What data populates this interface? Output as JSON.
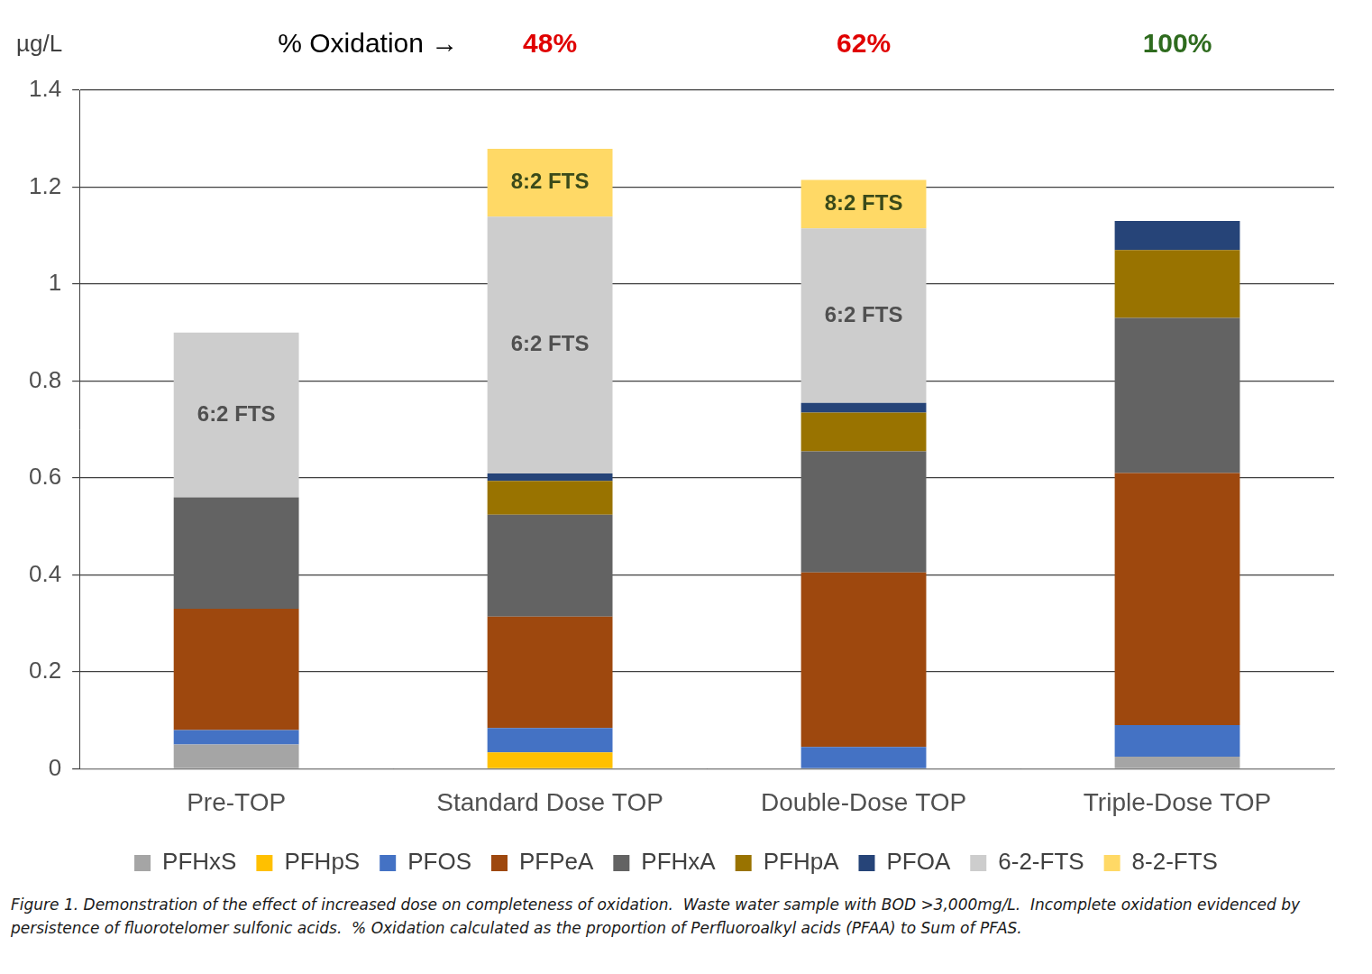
{
  "chart_data": {
    "type": "bar",
    "stacked": true,
    "ylabel": "µg/L",
    "categories": [
      "Pre-TOP",
      "Standard Dose TOP",
      "Double-Dose TOP",
      "Triple-Dose TOP"
    ],
    "series": [
      {
        "name": "PFHxS",
        "color": "#a5a5a5",
        "values": [
          0.05,
          0,
          0,
          0.025
        ]
      },
      {
        "name": "PFHpS",
        "color": "#ffc000",
        "values": [
          0,
          0.034,
          0,
          0
        ]
      },
      {
        "name": "PFOS",
        "color": "#4472c4",
        "values": [
          0.03,
          0.05,
          0.045,
          0.065
        ]
      },
      {
        "name": "PFPeA",
        "color": "#9e480e",
        "values": [
          0.25,
          0.23,
          0.36,
          0.52
        ]
      },
      {
        "name": "PFHxA",
        "color": "#636363",
        "values": [
          0.23,
          0.21,
          0.25,
          0.32
        ]
      },
      {
        "name": "PFHpA",
        "color": "#997300",
        "values": [
          0,
          0.07,
          0.08,
          0.14
        ]
      },
      {
        "name": "PFOA",
        "color": "#264478",
        "values": [
          0,
          0.015,
          0.02,
          0.06
        ]
      },
      {
        "name": "6-2-FTS",
        "color": "#cdcdcd",
        "values": [
          0.34,
          0.53,
          0.36,
          0
        ]
      },
      {
        "name": "8-2-FTS",
        "color": "#ffd966",
        "values": [
          0,
          0.14,
          0.1,
          0
        ]
      }
    ],
    "ylim": [
      0,
      1.4
    ],
    "yticks": [
      0,
      0.2,
      0.4,
      0.6,
      0.8,
      1,
      1.2,
      1.4
    ],
    "grid": true,
    "legend": "bottom",
    "annotations": [
      {
        "text": "% Oxidation →",
        "color": "#000000"
      },
      {
        "text": "48%",
        "category": "Standard Dose TOP",
        "color": "#e00000"
      },
      {
        "text": "62%",
        "category": "Double-Dose TOP",
        "color": "#e00000"
      },
      {
        "text": "100%",
        "category": "Triple-Dose TOP",
        "color": "#2e6b1e"
      },
      {
        "text": "6:2 FTS",
        "category": "Pre-TOP",
        "series": "6-2-FTS",
        "color": "#505050"
      },
      {
        "text": "6:2 FTS",
        "category": "Standard Dose TOP",
        "series": "6-2-FTS",
        "color": "#505050"
      },
      {
        "text": "8:2 FTS",
        "category": "Standard Dose TOP",
        "series": "8-2-FTS",
        "color": "#3a4a1a"
      },
      {
        "text": "6:2 FTS",
        "category": "Double-Dose TOP",
        "series": "6-2-FTS",
        "color": "#505050"
      },
      {
        "text": "8:2 FTS",
        "category": "Double-Dose TOP",
        "series": "8-2-FTS",
        "color": "#3a4a1a"
      }
    ],
    "caption": "Figure 1. Demonstration of the effect of increased dose on completeness of oxidation.  Waste water sample with BOD >3,000mg/L.  Incomplete oxidation evidenced by persistence of fluorotelomer sulfonic acids.  % Oxidation calculated as the proportion of Perfluoroalkyl acids (PFAA) to Sum of PFAS."
  }
}
